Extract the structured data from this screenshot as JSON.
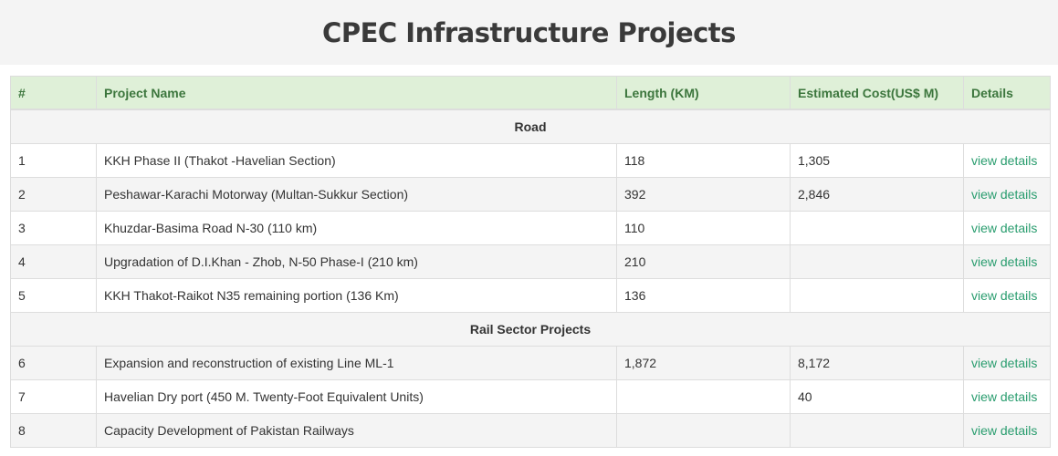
{
  "page": {
    "title": "CPEC Infrastructure Projects"
  },
  "table": {
    "headers": [
      "#",
      "Project Name",
      "Length (KM)",
      "Estimated Cost(US$ M)",
      "Details"
    ],
    "sections": [
      {
        "name": "Road",
        "rows": [
          {
            "num": "1",
            "name": "KKH Phase II (Thakot -Havelian Section)",
            "length": "118",
            "cost": "1,305",
            "details": "view details"
          },
          {
            "num": "2",
            "name": "Peshawar-Karachi Motorway (Multan-Sukkur Section)",
            "length": "392",
            "cost": "2,846",
            "details": "view details"
          },
          {
            "num": "3",
            "name": "Khuzdar-Basima Road N-30 (110 km)",
            "length": "110",
            "cost": "",
            "details": "view details"
          },
          {
            "num": "4",
            "name": "Upgradation of D.I.Khan - Zhob, N-50 Phase-I (210 km)",
            "length": "210",
            "cost": "",
            "details": "view details"
          },
          {
            "num": "5",
            "name": "KKH Thakot-Raikot N35 remaining portion (136 Km)",
            "length": "136",
            "cost": "",
            "details": "view details"
          }
        ]
      },
      {
        "name": "Rail Sector Projects",
        "rows": [
          {
            "num": "6",
            "name": "Expansion and reconstruction of existing Line ML-1",
            "length": "1,872",
            "cost": "8,172",
            "details": "view details"
          },
          {
            "num": "7",
            "name": "Havelian Dry port (450 M. Twenty-Foot Equivalent Units)",
            "length": "",
            "cost": "40",
            "details": "view details"
          },
          {
            "num": "8",
            "name": "Capacity Development of Pakistan Railways",
            "length": "",
            "cost": "",
            "details": "view details"
          }
        ]
      }
    ]
  }
}
